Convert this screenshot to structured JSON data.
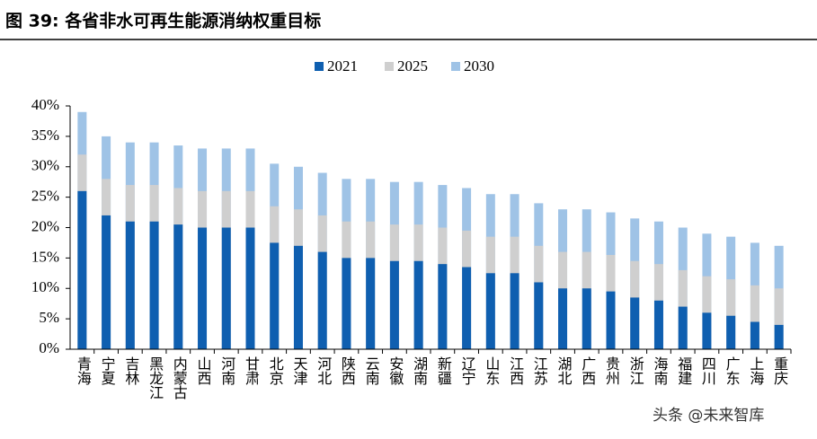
{
  "chart_data": {
    "type": "bar",
    "title": "图 39: 各省非水可再生能源消纳权重目标",
    "watermark": "头条 @未来智库",
    "categories": [
      "青海",
      "宁夏",
      "吉林",
      "黑龙江",
      "内蒙古",
      "山西",
      "河南",
      "甘肃",
      "北京",
      "天津",
      "河北",
      "陕西",
      "云南",
      "安徽",
      "湖南",
      "新疆",
      "辽宁",
      "山东",
      "江西",
      "江苏",
      "湖北",
      "广西",
      "贵州",
      "浙江",
      "海南",
      "福建",
      "四川",
      "广东",
      "上海",
      "重庆"
    ],
    "series": [
      {
        "name": "2021",
        "color": "#0f5fb0",
        "values": [
          26,
          22,
          21,
          21,
          20.5,
          20,
          20,
          20,
          17.5,
          17,
          16,
          15,
          15,
          14.5,
          14.5,
          14,
          13.5,
          12.5,
          12.5,
          11,
          10,
          10,
          9.5,
          8.5,
          8,
          7,
          6,
          5.5,
          4.5,
          4
        ]
      },
      {
        "name": "2025",
        "color": "#cfcfcf",
        "values": [
          32,
          28,
          27,
          27,
          26.5,
          26,
          26,
          26,
          23.5,
          23,
          22,
          21,
          21,
          20.5,
          20.5,
          20,
          19.5,
          18.5,
          18.5,
          17,
          16,
          16,
          15.5,
          14.5,
          14,
          13,
          12,
          11.5,
          10.5,
          10
        ]
      },
      {
        "name": "2030",
        "color": "#9fc3e6",
        "values": [
          39,
          35,
          34,
          34,
          33.5,
          33,
          33,
          33,
          30.5,
          30,
          29,
          28,
          28,
          27.5,
          27.5,
          27,
          26.5,
          25.5,
          25.5,
          24,
          23,
          23,
          22.5,
          21.5,
          21,
          20,
          19,
          18.5,
          17.5,
          17
        ]
      }
    ],
    "overlap": true,
    "ylim": [
      0,
      40
    ],
    "yticks": [
      {
        "value": 0,
        "label": "0%"
      },
      {
        "value": 5,
        "label": "5%"
      },
      {
        "value": 10,
        "label": "10%"
      },
      {
        "value": 15,
        "label": "15%"
      },
      {
        "value": 20,
        "label": "20%"
      },
      {
        "value": 25,
        "label": "25%"
      },
      {
        "value": 30,
        "label": "30%"
      },
      {
        "value": 35,
        "label": "35%"
      },
      {
        "value": 40,
        "label": "40%"
      }
    ],
    "legend": "top"
  }
}
